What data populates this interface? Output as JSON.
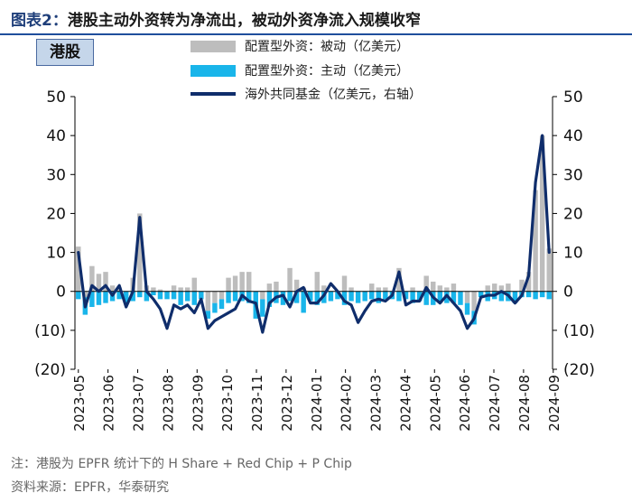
{
  "title": {
    "prefix": "图表2：",
    "text": "港股主动外资转为净流出，被动外资净流入规模收窄"
  },
  "market_tag": "港股",
  "legend": {
    "passive": "配置型外资：被动（亿美元）",
    "active": "配置型外资：主动（亿美元）",
    "hedge": "海外共同基金（亿美元，右轴）"
  },
  "colors": {
    "passive": "#bdbdbd",
    "active": "#19b5ea",
    "hedge": "#0f2d6b",
    "rule": "#1f4e9c"
  },
  "footer": {
    "note": "注：港股为 EPFR 统计下的 H Share + Red Chip + P Chip",
    "source": "资料来源：EPFR，华泰研究"
  },
  "chart_data": {
    "type": "bar+line",
    "y_left": {
      "min": -20,
      "max": 50,
      "ticks": [
        50,
        40,
        30,
        20,
        10,
        0,
        -10,
        -20
      ],
      "tick_labels": [
        "50",
        "40",
        "30",
        "20",
        "10",
        "0",
        "(10)",
        "(20)"
      ]
    },
    "y_right": {
      "min": -20,
      "max": 50,
      "ticks": [
        50,
        40,
        30,
        20,
        10,
        0,
        -10,
        -20
      ],
      "tick_labels": [
        "50",
        "40",
        "30",
        "20",
        "10",
        "0",
        "(10)",
        "(20)"
      ]
    },
    "x_labels": [
      "2023-05",
      "2023-06",
      "2023-07",
      "2023-08",
      "2023-09",
      "2023-10",
      "2023-11",
      "2023-12",
      "2024-01",
      "2024-02",
      "2024-03",
      "2024-04",
      "2024-05",
      "2024-06",
      "2024-07",
      "2024-08",
      "2024-09"
    ],
    "periods_per_label": 4.35,
    "series": [
      {
        "name": "配置型外资：被动（亿美元）",
        "kind": "bar",
        "values": [
          11.5,
          -1.5,
          6.5,
          4.5,
          5,
          1.5,
          1,
          0,
          3.5,
          20,
          1.5,
          1,
          0.5,
          0,
          1.5,
          1,
          1,
          3.5,
          0,
          -5,
          -3,
          -2,
          3.5,
          4,
          5,
          5,
          0,
          -2,
          2,
          2.5,
          0,
          6,
          3,
          1,
          0,
          5,
          1.5,
          0,
          0,
          4,
          1,
          0,
          0,
          2,
          1,
          1,
          0,
          6,
          0,
          1,
          0,
          4,
          2.5,
          1.5,
          1,
          2,
          0,
          -3,
          -5,
          0,
          1.5,
          2,
          1.5,
          2,
          0,
          3,
          5,
          26,
          40,
          11
        ]
      },
      {
        "name": "配置型外资：主动（亿美元）",
        "kind": "bar",
        "values": [
          -2,
          -4.5,
          -4,
          -3.5,
          -3,
          -2.5,
          -2,
          -3,
          -2.5,
          -1.5,
          -2.5,
          -1,
          -2,
          -2,
          -2,
          -3.5,
          -2.5,
          -3.5,
          -2,
          -2,
          -2.5,
          -2.5,
          -3,
          -2.5,
          -2.5,
          -3,
          -7,
          -4.5,
          -4,
          -3,
          -3.5,
          -2.5,
          -3,
          -5.5,
          -2.5,
          -3.5,
          -3,
          -2.5,
          -2,
          -3.5,
          -2.5,
          -3,
          -2.5,
          -2,
          -3,
          -2,
          -2,
          -2.5,
          -2,
          -3,
          -2.5,
          -3.5,
          -3.5,
          -3,
          -3,
          -3,
          -3.5,
          -3,
          -3.5,
          -1.5,
          -2.5,
          -2,
          -2.5,
          -2.5,
          -3,
          -1.5,
          -1.5,
          -2,
          -1.5,
          -2
        ]
      },
      {
        "name": "海外共同基金（亿美元，右轴）",
        "kind": "line",
        "axis": "right",
        "values": [
          10,
          -4,
          1.5,
          0,
          1.5,
          -1,
          1.5,
          -4,
          0,
          19,
          0,
          -2,
          -4.5,
          -9.5,
          -3.5,
          -4.5,
          -3.5,
          -5.5,
          -2,
          -9.5,
          -7.5,
          -6.5,
          -5.5,
          -4.5,
          -1,
          -2.5,
          -3,
          -10.5,
          -3,
          -1.5,
          -1,
          -4,
          0,
          1,
          -3,
          -3,
          -1,
          2,
          0,
          -2.5,
          -3.5,
          -8,
          -5,
          -2.5,
          -2,
          -2.5,
          -1,
          5,
          -3.5,
          -2.5,
          -2.5,
          1,
          -1.5,
          -3,
          -1,
          -3,
          -5,
          -9.5,
          -7,
          -1.5,
          -1,
          -1,
          0,
          -1,
          -3,
          -1,
          4,
          28,
          40,
          10
        ]
      }
    ]
  }
}
